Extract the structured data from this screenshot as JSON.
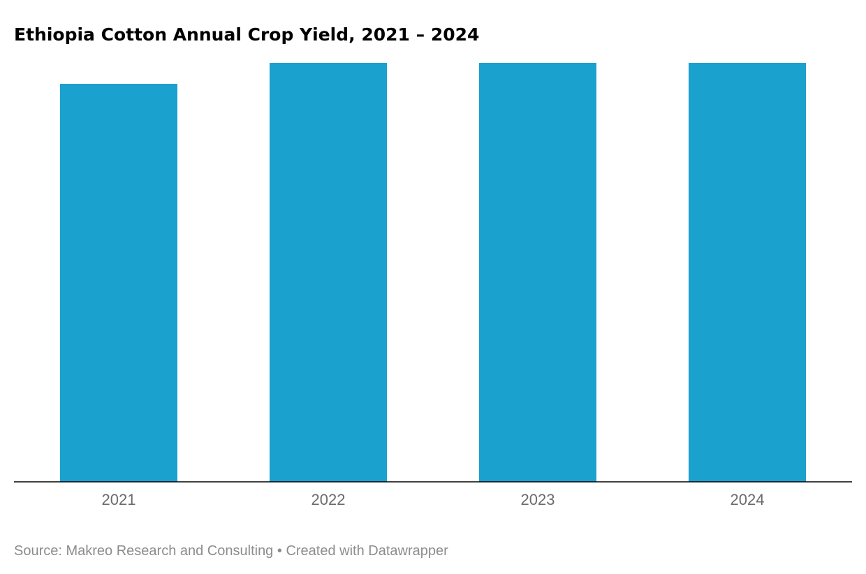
{
  "chart_data": {
    "type": "bar",
    "title": "Ethiopia Cotton Annual Crop Yield, 2021 – 2024",
    "categories": [
      "2021",
      "2022",
      "2023",
      "2024"
    ],
    "values": [
      0.95,
      1.0,
      1.0,
      1.0
    ],
    "value_note_unit": "relative (no axis values printed)",
    "xlabel": "",
    "ylabel": "",
    "ylim": [
      0,
      1.0
    ],
    "grid": false,
    "legend": "none",
    "bar_color": "#1aa1ce"
  },
  "footer": {
    "source": "Source: Makreo Research and Consulting",
    "separator": " • ",
    "credit": "Created with Datawrapper"
  },
  "colors": {
    "bar": "#1aa1ce",
    "axis": "#000000",
    "tick_text": "#6b6b6b",
    "footer_text": "#8c8c8c"
  }
}
